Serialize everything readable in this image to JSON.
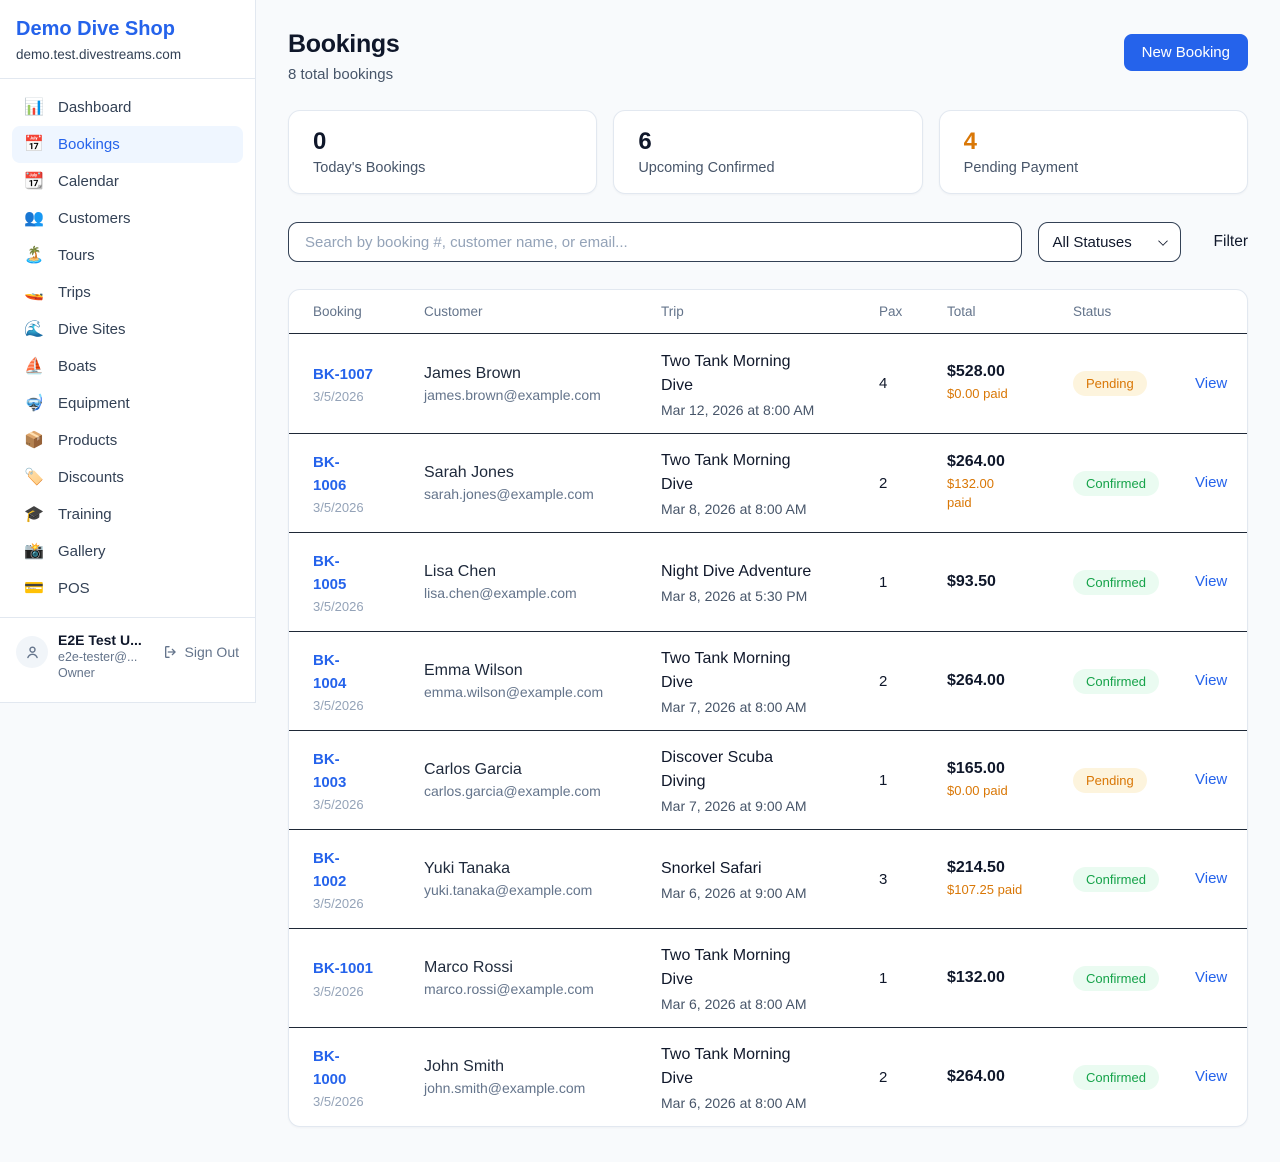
{
  "colors": {
    "accent_blue": "#2563eb",
    "warning_orange": "#d97706",
    "success_green": "#16a34a"
  },
  "brand": {
    "name": "Demo Dive Shop",
    "domain": "demo.test.divestreams.com"
  },
  "sidebar": {
    "items": [
      {
        "icon": "📊",
        "icon_name": "dashboard-icon",
        "label": "Dashboard",
        "active": false
      },
      {
        "icon": "📅",
        "icon_name": "bookings-icon",
        "label": "Bookings",
        "active": true
      },
      {
        "icon": "📆",
        "icon_name": "calendar-icon",
        "label": "Calendar",
        "active": false
      },
      {
        "icon": "👥",
        "icon_name": "customers-icon",
        "label": "Customers",
        "active": false
      },
      {
        "icon": "🏝️",
        "icon_name": "tours-icon",
        "label": "Tours",
        "active": false
      },
      {
        "icon": "🚤",
        "icon_name": "trips-icon",
        "label": "Trips",
        "active": false
      },
      {
        "icon": "🌊",
        "icon_name": "dive-sites-icon",
        "label": "Dive Sites",
        "active": false
      },
      {
        "icon": "⛵",
        "icon_name": "boats-icon",
        "label": "Boats",
        "active": false
      },
      {
        "icon": "🤿",
        "icon_name": "equipment-icon",
        "label": "Equipment",
        "active": false
      },
      {
        "icon": "📦",
        "icon_name": "products-icon",
        "label": "Products",
        "active": false
      },
      {
        "icon": "🏷️",
        "icon_name": "discounts-icon",
        "label": "Discounts",
        "active": false
      },
      {
        "icon": "🎓",
        "icon_name": "training-icon",
        "label": "Training",
        "active": false
      },
      {
        "icon": "📸",
        "icon_name": "gallery-icon",
        "label": "Gallery",
        "active": false
      },
      {
        "icon": "💳",
        "icon_name": "pos-icon",
        "label": "POS",
        "active": false
      }
    ]
  },
  "user": {
    "name": "E2E Test U...",
    "email": "e2e-tester@...",
    "role": "Owner",
    "sign_out_label": "Sign Out"
  },
  "header": {
    "title": "Bookings",
    "subtitle": "8 total bookings",
    "new_booking_label": "New Booking"
  },
  "stats": [
    {
      "value": "0",
      "label": "Today's Bookings",
      "accent": false
    },
    {
      "value": "6",
      "label": "Upcoming Confirmed",
      "accent": false
    },
    {
      "value": "4",
      "label": "Pending Payment",
      "accent": true
    }
  ],
  "filters": {
    "search_placeholder": "Search by booking #, customer name, or email...",
    "status_selected": "All Statuses",
    "filter_label": "Filter"
  },
  "table": {
    "columns": [
      "Booking",
      "Customer",
      "Trip",
      "Pax",
      "Total",
      "Status"
    ],
    "view_label": "View",
    "rows": [
      {
        "id": "BK-1007",
        "date": "3/5/2026",
        "customer_name": "James Brown",
        "customer_email": "james.brown@example.com",
        "trip_name": "Two Tank Morning\nDive",
        "trip_datetime": "Mar 12, 2026 at 8:00 AM",
        "pax": "4",
        "total": "$528.00",
        "paid": "$0.00 paid",
        "status": "Pending"
      },
      {
        "id": "BK-\n1006",
        "date": "3/5/2026",
        "customer_name": "Sarah Jones",
        "customer_email": "sarah.jones@example.com",
        "trip_name": "Two Tank Morning\nDive",
        "trip_datetime": "Mar 8, 2026 at 8:00 AM",
        "pax": "2",
        "total": "$264.00",
        "paid": "$132.00\npaid",
        "status": "Confirmed"
      },
      {
        "id": "BK-\n1005",
        "date": "3/5/2026",
        "customer_name": "Lisa Chen",
        "customer_email": "lisa.chen@example.com",
        "trip_name": "Night Dive Adventure",
        "trip_datetime": "Mar 8, 2026 at 5:30 PM",
        "pax": "1",
        "total": "$93.50",
        "paid": null,
        "status": "Confirmed"
      },
      {
        "id": "BK-\n1004",
        "date": "3/5/2026",
        "customer_name": "Emma Wilson",
        "customer_email": "emma.wilson@example.com",
        "trip_name": "Two Tank Morning\nDive",
        "trip_datetime": "Mar 7, 2026 at 8:00 AM",
        "pax": "2",
        "total": "$264.00",
        "paid": null,
        "status": "Confirmed"
      },
      {
        "id": "BK-\n1003",
        "date": "3/5/2026",
        "customer_name": "Carlos Garcia",
        "customer_email": "carlos.garcia@example.com",
        "trip_name": "Discover Scuba\nDiving",
        "trip_datetime": "Mar 7, 2026 at 9:00 AM",
        "pax": "1",
        "total": "$165.00",
        "paid": "$0.00 paid",
        "status": "Pending"
      },
      {
        "id": "BK-\n1002",
        "date": "3/5/2026",
        "customer_name": "Yuki Tanaka",
        "customer_email": "yuki.tanaka@example.com",
        "trip_name": "Snorkel Safari",
        "trip_datetime": "Mar 6, 2026 at 9:00 AM",
        "pax": "3",
        "total": "$214.50",
        "paid": "$107.25 paid",
        "status": "Confirmed"
      },
      {
        "id": "BK-1001",
        "date": "3/5/2026",
        "customer_name": "Marco Rossi",
        "customer_email": "marco.rossi@example.com",
        "trip_name": "Two Tank Morning\nDive",
        "trip_datetime": "Mar 6, 2026 at 8:00 AM",
        "pax": "1",
        "total": "$132.00",
        "paid": null,
        "status": "Confirmed"
      },
      {
        "id": "BK-\n1000",
        "date": "3/5/2026",
        "customer_name": "John Smith",
        "customer_email": "john.smith@example.com",
        "trip_name": "Two Tank Morning\nDive",
        "trip_datetime": "Mar 6, 2026 at 8:00 AM",
        "pax": "2",
        "total": "$264.00",
        "paid": null,
        "status": "Confirmed"
      }
    ]
  }
}
